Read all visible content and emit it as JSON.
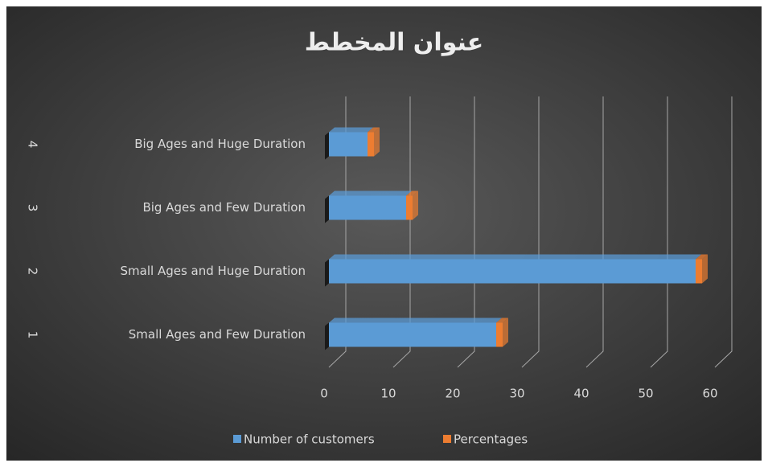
{
  "chart_data": {
    "type": "bar",
    "orientation": "horizontal",
    "stacked": true,
    "title": "عنوان المخطط",
    "category_numbers": [
      "1",
      "2",
      "3",
      "4"
    ],
    "categories": [
      "Small Ages and Few Duration",
      "Small Ages and Huge Duration",
      "Big Ages and Few Duration",
      "Big Ages and  Huge Duration"
    ],
    "series": [
      {
        "name": "Number of customers",
        "color": "#5b9bd5",
        "values": [
          26,
          57,
          12,
          6
        ]
      },
      {
        "name": "Percentages",
        "color": "#ed7d31",
        "values": [
          1,
          1,
          1,
          1
        ]
      }
    ],
    "xlim": [
      0,
      60
    ],
    "xticks": [
      0,
      10,
      20,
      30,
      40,
      50,
      60
    ],
    "grid": true,
    "legend": "bottom"
  }
}
